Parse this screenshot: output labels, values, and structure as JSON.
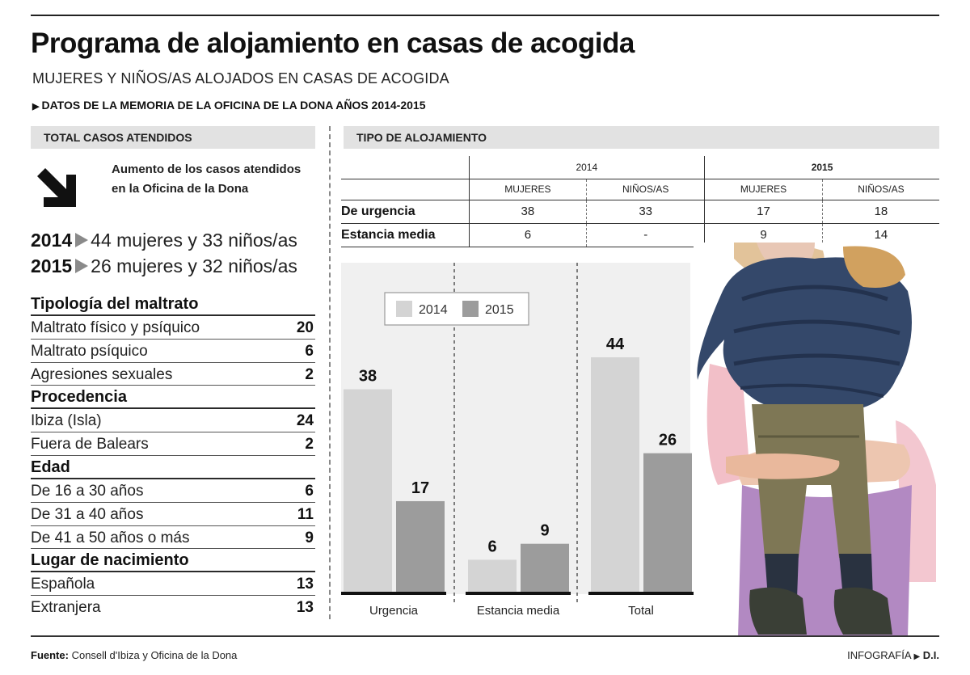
{
  "header": {
    "title": "Programa de alojamiento en casas de acogida",
    "subtitle": "MUJERES Y NIÑOS/AS ALOJADOS EN CASAS DE ACOGIDA",
    "source_note": "DATOS DE LA MEMORIA DE LA OFICINA DE LA DONA AÑOS 2014-2015"
  },
  "left_panel": {
    "heading": "TOTAL CASOS ATENDIDOS",
    "increase_text": "Aumento de los casos atendidos en la Oficina de la Dona",
    "years": [
      {
        "year": "2014",
        "text": "44 mujeres y 33 niños/as"
      },
      {
        "year": "2015",
        "text": "26 mujeres y 32 niños/as"
      }
    ],
    "categories": [
      {
        "name": "Tipología del maltrato",
        "rows": [
          {
            "label": "Maltrato físico y psíquico",
            "value": "20"
          },
          {
            "label": "Maltrato psíquico",
            "value": "6"
          },
          {
            "label": "Agresiones sexuales",
            "value": "2"
          }
        ]
      },
      {
        "name": "Procedencia",
        "rows": [
          {
            "label": "Ibiza (Isla)",
            "value": "24"
          },
          {
            "label": "Fuera de Balears",
            "value": "2"
          }
        ]
      },
      {
        "name": "Edad",
        "rows": [
          {
            "label": "De 16 a 30 años",
            "value": "6"
          },
          {
            "label": "De 31 a 40 años",
            "value": "11"
          },
          {
            "label": "De 41 a 50 años o más",
            "value": "9"
          }
        ]
      },
      {
        "name": "Lugar de nacimiento",
        "rows": [
          {
            "label": "Española",
            "value": "13"
          },
          {
            "label": "Extranjera",
            "value": "13"
          }
        ]
      }
    ]
  },
  "tipo_alojamiento": {
    "heading": "TIPO DE ALOJAMIENTO",
    "year_2014": "2014",
    "year_2015": "2015",
    "col_mujeres": "MUJERES",
    "col_ninos": "NIÑOS/AS",
    "rows": [
      {
        "label": "De urgencia",
        "v2014_mujeres": "38",
        "v2014_ninos": "33",
        "v2015_mujeres": "17",
        "v2015_ninos": "18"
      },
      {
        "label": "Estancia media",
        "v2014_mujeres": "6",
        "v2014_ninos": "-",
        "v2015_mujeres": "9",
        "v2015_ninos": "14"
      }
    ]
  },
  "chart_data": {
    "type": "bar",
    "categories": [
      "Urgencia",
      "Estancia media",
      "Total"
    ],
    "series": [
      {
        "name": "2014",
        "values": [
          38,
          6,
          44
        ],
        "color": "#d4d4d4"
      },
      {
        "name": "2015",
        "values": [
          17,
          9,
          26
        ],
        "color": "#9c9c9c"
      }
    ],
    "title": "",
    "xlabel": "",
    "ylabel": "",
    "ylim": [
      0,
      44
    ],
    "grid": false,
    "legend_position": "top"
  },
  "footer": {
    "source_label": "Fuente:",
    "source_text": "Consell d'Ibiza y Oficina de la Dona",
    "credit_label": "INFOGRAFÍA",
    "credit_name": "D.I."
  },
  "colors": {
    "bar_2014": "#d4d4d4",
    "bar_2015": "#9c9c9c",
    "panel_grey": "#e2e2e2"
  },
  "icons": {
    "increase_arrow": "arrow-down-right-icon",
    "bullet": "triangle-right-icon"
  }
}
